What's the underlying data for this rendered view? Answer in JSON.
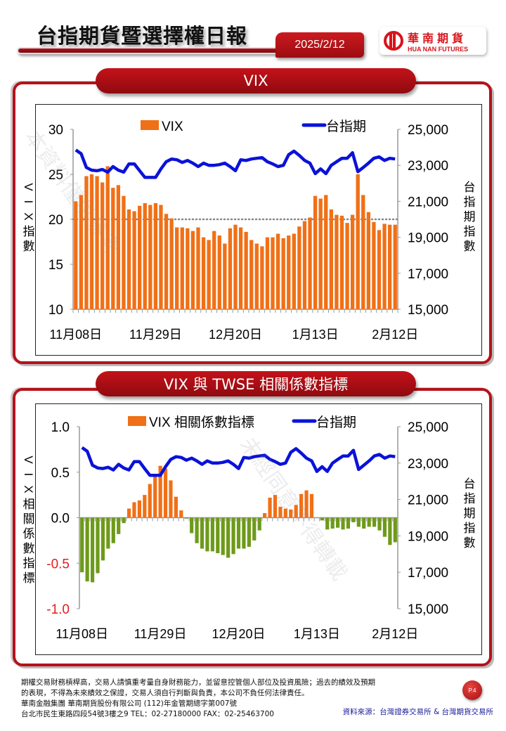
{
  "header": {
    "title": "台指期貨暨選擇權日報",
    "date": "2025/2/12",
    "logo_cn": "華南期貨",
    "logo_en": "HUA NAN FUTURES"
  },
  "panels": {
    "vix": {
      "title": "VIX"
    },
    "corr": {
      "title": "VIX 與 TWSE 相關係數指標"
    }
  },
  "footer": {
    "disclaimer_1": "期權交易財務槓桿高，交易人請慎重考量自身財務能力，並留意控管個人部位及投資風險；過去的績效及預期",
    "disclaimer_2": "的表現，不得為未來績效之保證，交易人須自行判斷與負責，本公司不負任何法律責任。",
    "company": "華南金融集團 華南期貨股份有限公司 (112)年金管期總字第007號",
    "address": "台北市民生東路四段54號3樓之9  TEL：02-27180000  FAX：02-25463700",
    "source": "資料來源：台灣證券交易所 & 台灣期貨交易所",
    "page": "P.4"
  },
  "colors": {
    "brand_red": "#b5121b",
    "bar_orange": "#f07017",
    "bar_green": "#6e9a1a",
    "line_blue": "#0a12d8",
    "negative_tick": "#e0201e"
  },
  "chart_data": [
    {
      "type": "bar+line",
      "title": "VIX",
      "xlabel": "",
      "ylabel": "VIX 指數",
      "y2label": "台指期指數",
      "ylim": [
        10,
        30
      ],
      "y_ticks": [
        "10",
        "15",
        "20",
        "25",
        "30"
      ],
      "y2lim": [
        15000,
        25000
      ],
      "y2_ticks": [
        "15,000",
        "17,000",
        "19,000",
        "21,000",
        "23,000",
        "25,000"
      ],
      "x_tick_labels": [
        "11月08日",
        "11月29日",
        "12月20日",
        "1月13日",
        "2月12日"
      ],
      "x_tick_label_index": [
        0,
        15,
        30,
        45,
        60
      ],
      "reference_line": 20,
      "legend": [
        "VIX",
        "台指期"
      ],
      "series": [
        {
          "name": "VIX",
          "type": "bar",
          "values": [
            22.0,
            22.7,
            24.8,
            25.0,
            24.8,
            24.1,
            25.9,
            23.5,
            23.8,
            22.6,
            21.1,
            20.9,
            21.5,
            21.8,
            21.6,
            21.8,
            21.6,
            20.6,
            20.1,
            19.1,
            19.1,
            19.0,
            18.7,
            19.1,
            18.0,
            17.7,
            18.7,
            18.2,
            17.3,
            19.0,
            19.4,
            19.1,
            18.6,
            17.7,
            17.3,
            17.0,
            18.0,
            18.0,
            18.4,
            17.9,
            18.2,
            18.4,
            19.2,
            19.8,
            20.2,
            22.6,
            22.3,
            22.7,
            21.1,
            20.5,
            20.4,
            19.6,
            20.5,
            25.0,
            22.7,
            20.8,
            19.7,
            18.8,
            19.5,
            19.4,
            19.4
          ]
        },
        {
          "name": "台指期",
          "type": "line",
          "axis": "right",
          "values": [
            23850,
            23650,
            22880,
            22730,
            22700,
            22770,
            22620,
            22930,
            22730,
            22620,
            23080,
            23080,
            22700,
            22330,
            22330,
            22330,
            22800,
            23200,
            23350,
            23310,
            23160,
            23270,
            23120,
            22930,
            23120,
            23000,
            23000,
            23040,
            23120,
            22930,
            22700,
            23310,
            23270,
            23350,
            23390,
            23430,
            23200,
            23080,
            22930,
            23000,
            23590,
            23790,
            23550,
            23270,
            23120,
            22540,
            22800,
            22540,
            23000,
            23200,
            23390,
            23390,
            23700,
            22650,
            22880,
            23120,
            23390,
            23470,
            23270,
            23390,
            23350
          ]
        }
      ]
    },
    {
      "type": "bar+line",
      "title": "VIX 與 TWSE 相關係數指標",
      "ylabel": "VIX 相關係數指標",
      "y2label": "台指期指數",
      "ylim": [
        -1.0,
        1.0
      ],
      "y_ticks": [
        "-1.0",
        "-0.5",
        "0.0",
        "0.5",
        "1.0"
      ],
      "y2lim": [
        15000,
        25000
      ],
      "y2_ticks": [
        "15,000",
        "17,000",
        "19,000",
        "21,000",
        "23,000",
        "25,000"
      ],
      "x_tick_labels": [
        "11月08日",
        "11月29日",
        "12月20日",
        "1月13日",
        "2月12日"
      ],
      "x_tick_label_index": [
        0,
        15,
        30,
        45,
        60
      ],
      "legend": [
        "VIX 相關係數指標",
        "台指期"
      ],
      "series": [
        {
          "name": "VIX 相關係數指標",
          "type": "bar",
          "values": [
            -0.6,
            -0.7,
            -0.71,
            -0.61,
            -0.47,
            -0.34,
            -0.28,
            -0.18,
            -0.06,
            0.1,
            0.17,
            0.19,
            0.25,
            0.37,
            0.47,
            0.57,
            0.54,
            0.41,
            0.23,
            0.08,
            -0.01,
            -0.17,
            -0.28,
            -0.34,
            -0.37,
            -0.37,
            -0.39,
            -0.41,
            -0.44,
            -0.4,
            -0.34,
            -0.34,
            -0.32,
            -0.25,
            -0.14,
            0.05,
            0.22,
            0.25,
            0.12,
            0.1,
            0.09,
            0.14,
            0.26,
            0.3,
            0.26,
            0.0,
            -0.03,
            -0.13,
            -0.12,
            -0.11,
            -0.13,
            -0.12,
            -0.05,
            -0.1,
            -0.12,
            -0.1,
            -0.1,
            -0.14,
            -0.21,
            -0.3,
            -0.27
          ]
        },
        {
          "name": "台指期",
          "type": "line",
          "axis": "right",
          "values": [
            23850,
            23650,
            22880,
            22730,
            22700,
            22770,
            22620,
            22930,
            22730,
            22620,
            23080,
            23080,
            22700,
            22330,
            22330,
            22330,
            22800,
            23200,
            23350,
            23310,
            23160,
            23270,
            23120,
            22930,
            23120,
            23000,
            23000,
            23040,
            23120,
            22930,
            22700,
            23310,
            23270,
            23350,
            23390,
            23430,
            23200,
            23080,
            22930,
            23000,
            23590,
            23790,
            23550,
            23270,
            23120,
            22540,
            22800,
            22540,
            23000,
            23200,
            23390,
            23390,
            23700,
            22650,
            22880,
            23120,
            23390,
            23470,
            23270,
            23390,
            23350
          ]
        }
      ]
    }
  ]
}
